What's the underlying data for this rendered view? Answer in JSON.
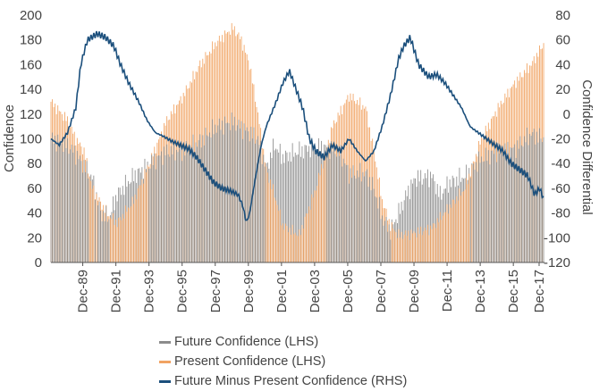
{
  "chart_data": {
    "type": "bar+line",
    "title": "",
    "left_axis": {
      "label": "Confidence",
      "ylim": [
        0,
        200
      ],
      "ticks": [
        "0",
        "20",
        "40",
        "60",
        "80",
        "100",
        "120",
        "140",
        "160",
        "180",
        "200"
      ]
    },
    "right_axis": {
      "label": "Confidence Differential",
      "ylim": [
        -120,
        80
      ],
      "ticks": [
        "-120",
        "-100",
        "-80",
        "-60",
        "-40",
        "-20",
        "0",
        "20",
        "40",
        "60",
        "80"
      ]
    },
    "x_axis": {
      "range": [
        1988.0,
        2017.8
      ],
      "tick_labels": [
        "Dec-89",
        "Dec-91",
        "Dec-93",
        "Dec-95",
        "Dec-97",
        "Dec-99",
        "Dec-01",
        "Dec-03",
        "Dec-05",
        "Dec-07",
        "Dec-09",
        "Dec-11",
        "Dec-13",
        "Dec-15",
        "Dec-17"
      ],
      "tick_years": [
        1989.92,
        1991.92,
        1993.92,
        1995.92,
        1997.92,
        1999.92,
        2001.92,
        2003.92,
        2005.92,
        2007.92,
        2009.92,
        2011.92,
        2013.92,
        2015.92,
        2017.92
      ]
    },
    "legend_position": "bottom",
    "series": [
      {
        "name": "Future Confidence (LHS)",
        "axis": "left",
        "kind": "bar",
        "color": "#8c8c8c",
        "x": [
          1988.0,
          1989.0,
          1989.5,
          1990.5,
          1991.0,
          1991.5,
          1992.0,
          1993.0,
          1994.0,
          1995.0,
          1996.0,
          1997.0,
          1998.0,
          1999.0,
          2000.0,
          2000.5,
          2001.0,
          2001.5,
          2002.0,
          2003.0,
          2004.0,
          2005.0,
          2005.5,
          2006.0,
          2007.0,
          2007.5,
          2008.0,
          2008.5,
          2009.0,
          2009.5,
          2010.0,
          2011.0,
          2011.5,
          2012.0,
          2013.0,
          2014.0,
          2015.0,
          2016.0,
          2017.0,
          2017.8
        ],
        "values": [
          100,
          95,
          88,
          68,
          40,
          36,
          55,
          70,
          80,
          90,
          90,
          98,
          110,
          114,
          105,
          100,
          76,
          95,
          85,
          90,
          94,
          92,
          88,
          72,
          72,
          60,
          36,
          26,
          40,
          56,
          68,
          70,
          54,
          64,
          70,
          84,
          90,
          92,
          104,
          100
        ]
      },
      {
        "name": "Present Confidence (LHS)",
        "axis": "left",
        "kind": "bar",
        "color": "#f1a362",
        "x": [
          1988.0,
          1989.0,
          1989.5,
          1990.0,
          1990.5,
          1991.0,
          1991.5,
          1992.0,
          1993.0,
          1994.0,
          1995.0,
          1996.0,
          1997.0,
          1998.0,
          1999.0,
          1999.5,
          2000.0,
          2000.5,
          2001.0,
          2001.5,
          2002.0,
          2003.0,
          2004.0,
          2005.0,
          2006.0,
          2007.0,
          2007.5,
          2008.0,
          2008.5,
          2009.0,
          2010.0,
          2011.0,
          2012.0,
          2013.0,
          2014.0,
          2015.0,
          2016.0,
          2017.0,
          2017.8
        ],
        "values": [
          130,
          115,
          100,
          90,
          60,
          48,
          38,
          32,
          50,
          82,
          115,
          135,
          160,
          178,
          190,
          180,
          160,
          120,
          75,
          55,
          30,
          22,
          60,
          110,
          135,
          125,
          90,
          50,
          30,
          22,
          24,
          28,
          44,
          60,
          100,
          125,
          145,
          160,
          178
        ]
      },
      {
        "name": "Future Minus Present Confidence (RHS)",
        "axis": "right",
        "kind": "line",
        "color": "#1b4f7c",
        "x": [
          1988.0,
          1988.5,
          1989.0,
          1989.5,
          1989.8,
          1990.2,
          1990.8,
          1991.3,
          1991.8,
          1992.2,
          1992.7,
          1993.3,
          1993.8,
          1994.3,
          1994.8,
          1995.3,
          1995.8,
          1996.3,
          1996.8,
          1997.3,
          1997.8,
          1998.3,
          1998.8,
          1999.3,
          1999.6,
          1999.8,
          2000.0,
          2000.3,
          2000.7,
          2001.0,
          2001.3,
          2001.6,
          2002.0,
          2002.4,
          2002.8,
          2003.2,
          2003.6,
          2004.0,
          2004.5,
          2005.0,
          2005.5,
          2006.0,
          2006.5,
          2007.0,
          2007.5,
          2008.0,
          2008.5,
          2009.0,
          2009.3,
          2009.7,
          2010.2,
          2010.8,
          2011.3,
          2011.8,
          2012.3,
          2012.8,
          2013.3,
          2013.8,
          2014.3,
          2014.8,
          2015.3,
          2015.8,
          2016.3,
          2016.8,
          2017.2,
          2017.5,
          2017.8
        ],
        "values": [
          -20,
          -25,
          -15,
          5,
          40,
          60,
          65,
          62,
          55,
          40,
          25,
          10,
          -5,
          -15,
          -18,
          -22,
          -25,
          -28,
          -35,
          -45,
          -55,
          -60,
          -62,
          -65,
          -75,
          -88,
          -80,
          -55,
          -25,
          -10,
          0,
          10,
          25,
          35,
          20,
          5,
          -20,
          -30,
          -35,
          -25,
          -30,
          -20,
          -30,
          -38,
          -30,
          -10,
          15,
          45,
          55,
          62,
          40,
          30,
          32,
          25,
          15,
          5,
          -10,
          -15,
          -20,
          -25,
          -30,
          -40,
          -45,
          -50,
          -65,
          -60,
          -70
        ]
      }
    ]
  }
}
